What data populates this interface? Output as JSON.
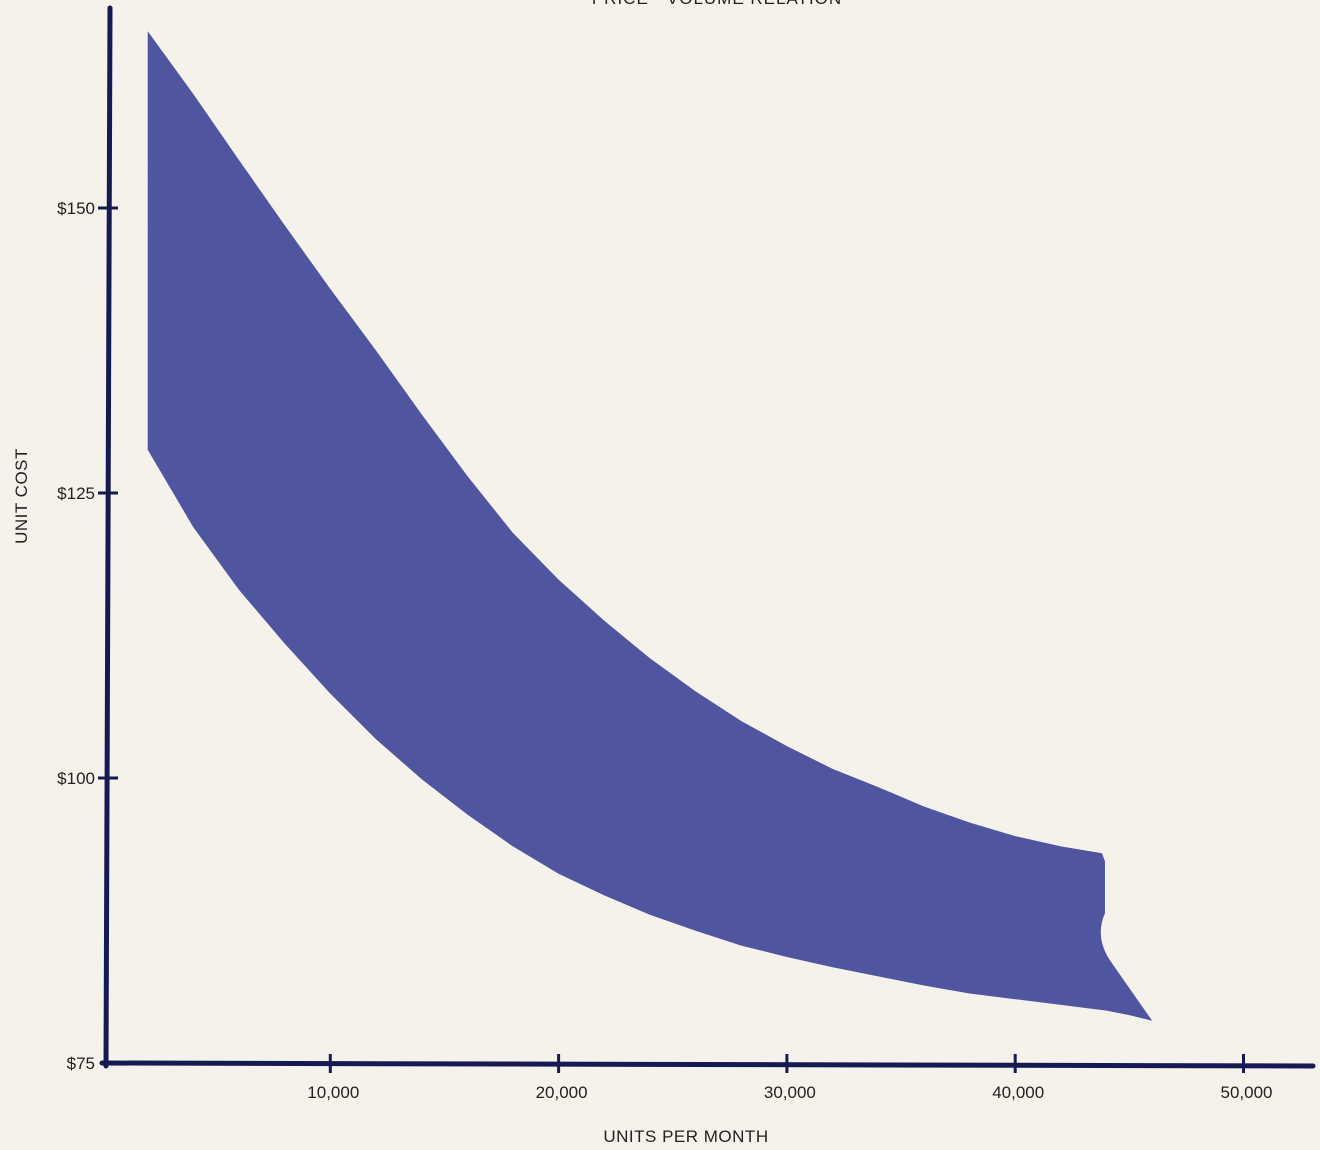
{
  "chart_data": {
    "type": "area",
    "title": "PRICE - VOLUME RELATION",
    "xlabel": "UNITS PER MONTH",
    "ylabel": "UNIT COST",
    "xlim": [
      0,
      50000
    ],
    "ylim": [
      75,
      160
    ],
    "x_ticks": [
      {
        "value": 10000,
        "label": "10,000"
      },
      {
        "value": 20000,
        "label": "20,000"
      },
      {
        "value": 30000,
        "label": "30,000"
      },
      {
        "value": 40000,
        "label": "40,000"
      },
      {
        "value": 50000,
        "label": "50,000"
      }
    ],
    "y_ticks": [
      {
        "value": 75,
        "label": "$75"
      },
      {
        "value": 100,
        "label": "$100"
      },
      {
        "value": 125,
        "label": "$125"
      },
      {
        "value": 150,
        "label": "$150"
      }
    ],
    "grid": false,
    "series": [
      {
        "band": "upper",
        "x": [
          2000,
          4000,
          6000,
          8000,
          10000,
          12000,
          14000,
          16000,
          18000,
          20000,
          22000,
          24000,
          26000,
          28000,
          30000,
          32000,
          34000,
          36000,
          38000,
          40000,
          42000,
          43800
        ],
        "values": [
          165.5,
          160.0,
          154.2,
          148.5,
          142.9,
          137.5,
          131.9,
          126.5,
          121.5,
          117.4,
          113.8,
          110.5,
          107.6,
          105.0,
          102.8,
          100.8,
          99.2,
          97.5,
          96.1,
          94.9,
          94.0,
          93.4
        ]
      },
      {
        "band": "lower",
        "x": [
          2000,
          4000,
          6000,
          8000,
          10000,
          12000,
          14000,
          16000,
          18000,
          20000,
          22000,
          24000,
          26000,
          28000,
          30000,
          32000,
          34000,
          36000,
          38000,
          40000,
          42000,
          44000,
          45000,
          46000
        ],
        "values": [
          128.8,
          122.0,
          116.5,
          111.8,
          107.4,
          103.4,
          99.9,
          96.8,
          94.0,
          91.6,
          89.7,
          88.0,
          86.6,
          85.3,
          84.3,
          83.4,
          82.6,
          81.8,
          81.1,
          80.6,
          80.1,
          79.6,
          79.2,
          78.7
        ]
      }
    ],
    "colors": {
      "band": "#4f559e",
      "axis": "#161a52",
      "background": "#f4f2ea"
    }
  }
}
